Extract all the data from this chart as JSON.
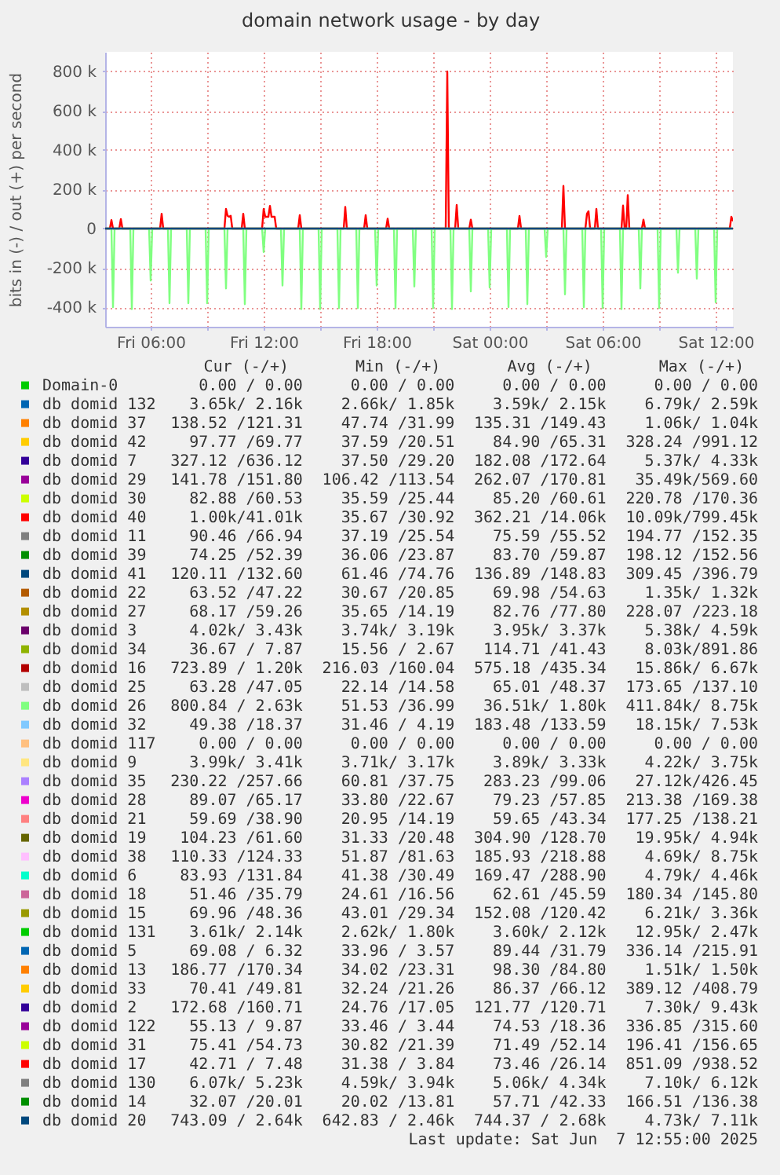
{
  "chart_data": {
    "type": "line",
    "title": "domain network usage - by day",
    "ylabel": "bits in (-) / out (+) per second",
    "xlim": [
      "2025-06-06T03:35",
      "2025-06-07T12:55"
    ],
    "xticks": [
      {
        "value": "2025-06-06T06:00",
        "label": "Fri 06:00"
      },
      {
        "value": "2025-06-06T09:00",
        "label": null
      },
      {
        "value": "2025-06-06T12:00",
        "label": "Fri 12:00"
      },
      {
        "value": "2025-06-06T15:00",
        "label": null
      },
      {
        "value": "2025-06-06T18:00",
        "label": "Fri 18:00"
      },
      {
        "value": "2025-06-06T21:00",
        "label": null
      },
      {
        "value": "2025-06-07T00:00",
        "label": "Sat 00:00"
      },
      {
        "value": "2025-06-07T03:00",
        "label": null
      },
      {
        "value": "2025-06-07T06:00",
        "label": "Sat 06:00"
      },
      {
        "value": "2025-06-07T09:00",
        "label": null
      },
      {
        "value": "2025-06-07T12:00",
        "label": "Sat 12:00"
      }
    ],
    "ylim": [
      -500000,
      900000
    ],
    "yticks": [
      {
        "value": -400000,
        "label": "-400 k"
      },
      {
        "value": -200000,
        "label": "-200 k"
      },
      0,
      {
        "value": 200000,
        "label": "200 k"
      },
      {
        "value": 400000,
        "label": "400 k"
      },
      {
        "value": 600000,
        "label": "600 k"
      },
      {
        "value": 800000,
        "label": "800 k"
      }
    ],
    "grid": true,
    "legend": "bottom",
    "series": [
      {
        "name": "Domain-0",
        "color": "#00cc00"
      },
      {
        "name": "db domid 132",
        "color": "#0066b3"
      },
      {
        "name": "db domid 37",
        "color": "#ff8000"
      },
      {
        "name": "db domid 42",
        "color": "#ffcc00"
      },
      {
        "name": "db domid 7",
        "color": "#330099"
      },
      {
        "name": "db domid 29",
        "color": "#990099"
      },
      {
        "name": "db domid 30",
        "color": "#ccff00"
      },
      {
        "name": "db domid 40",
        "color": "#ff0000",
        "x": [
          "2025-06-06T03:35",
          "2025-06-06T03:50",
          "2025-06-06T03:55",
          "2025-06-06T04:00",
          "2025-06-06T04:20",
          "2025-06-06T04:25",
          "2025-06-06T04:30",
          "2025-06-06T06:30",
          "2025-06-06T06:35",
          "2025-06-06T06:40",
          "2025-06-06T09:55",
          "2025-06-06T10:00",
          "2025-06-06T10:05",
          "2025-06-06T10:10",
          "2025-06-06T10:15",
          "2025-06-06T10:20",
          "2025-06-06T10:50",
          "2025-06-06T10:55",
          "2025-06-06T11:00",
          "2025-06-06T11:55",
          "2025-06-06T12:00",
          "2025-06-06T12:05",
          "2025-06-06T12:10",
          "2025-06-06T12:15",
          "2025-06-06T12:20",
          "2025-06-06T12:25",
          "2025-06-06T12:30",
          "2025-06-06T12:35",
          "2025-06-06T12:40",
          "2025-06-06T13:50",
          "2025-06-06T13:55",
          "2025-06-06T14:00",
          "2025-06-06T16:15",
          "2025-06-06T16:20",
          "2025-06-06T16:25",
          "2025-06-06T17:20",
          "2025-06-06T17:25",
          "2025-06-06T17:30",
          "2025-06-06T18:30",
          "2025-06-06T18:35",
          "2025-06-06T18:40",
          "2025-06-06T21:40",
          "2025-06-06T21:45",
          "2025-06-06T21:50",
          "2025-06-06T22:10",
          "2025-06-06T22:15",
          "2025-06-06T22:20",
          "2025-06-06T22:55",
          "2025-06-06T23:00",
          "2025-06-06T23:05",
          "2025-06-07T01:30",
          "2025-06-07T01:35",
          "2025-06-07T01:40",
          "2025-06-07T03:50",
          "2025-06-07T03:55",
          "2025-06-07T04:00",
          "2025-06-07T05:05",
          "2025-06-07T05:10",
          "2025-06-07T05:15",
          "2025-06-07T05:20",
          "2025-06-07T05:35",
          "2025-06-07T05:40",
          "2025-06-07T05:45",
          "2025-06-07T07:00",
          "2025-06-07T07:05",
          "2025-06-07T07:10",
          "2025-06-07T07:15",
          "2025-06-07T07:20",
          "2025-06-07T07:25",
          "2025-06-07T08:05",
          "2025-06-07T08:10",
          "2025-06-07T08:15",
          "2025-06-07T12:45",
          "2025-06-07T12:50",
          "2025-06-07T12:55"
        ],
        "values": [
          0,
          0,
          43000,
          0,
          0,
          48000,
          0,
          0,
          75000,
          0,
          0,
          100000,
          65000,
          60000,
          65000,
          0,
          0,
          75000,
          0,
          0,
          100000,
          60000,
          60000,
          60000,
          115000,
          60000,
          60000,
          60000,
          0,
          0,
          68000,
          0,
          0,
          110000,
          0,
          0,
          68000,
          0,
          0,
          50000,
          0,
          0,
          800000,
          0,
          0,
          120000,
          0,
          0,
          45000,
          0,
          0,
          64000,
          0,
          0,
          217000,
          0,
          0,
          75000,
          88000,
          0,
          0,
          100000,
          0,
          0,
          117000,
          0,
          0,
          170000,
          0,
          0,
          45000,
          0,
          0,
          60000,
          41000
        ]
      },
      {
        "name": "db domid 11",
        "color": "#808080"
      },
      {
        "name": "db domid 39",
        "color": "#008f00"
      },
      {
        "name": "db domid 41",
        "color": "#00487d"
      },
      {
        "name": "db domid 22",
        "color": "#b35a00"
      },
      {
        "name": "db domid 27",
        "color": "#b38f00"
      },
      {
        "name": "db domid 3",
        "color": "#6b006b"
      },
      {
        "name": "db domid 34",
        "color": "#8fb300"
      },
      {
        "name": "db domid 16",
        "color": "#b30000"
      },
      {
        "name": "db domid 25",
        "color": "#bebebe"
      },
      {
        "name": "db domid 26",
        "color": "#80ff80",
        "x": [
          "2025-06-06T03:35",
          "2025-06-06T03:55",
          "2025-06-06T04:00",
          "2025-06-06T04:05",
          "2025-06-06T04:55",
          "2025-06-06T05:00",
          "2025-06-06T05:05",
          "2025-06-06T05:55",
          "2025-06-06T06:00",
          "2025-06-06T06:05",
          "2025-06-06T06:55",
          "2025-06-06T07:00",
          "2025-06-06T07:05",
          "2025-06-06T07:55",
          "2025-06-06T08:00",
          "2025-06-06T08:05",
          "2025-06-06T08:55",
          "2025-06-06T09:00",
          "2025-06-06T09:05",
          "2025-06-06T09:55",
          "2025-06-06T10:00",
          "2025-06-06T10:05",
          "2025-06-06T10:55",
          "2025-06-06T11:00",
          "2025-06-06T11:05",
          "2025-06-06T11:55",
          "2025-06-06T12:00",
          "2025-06-06T12:05",
          "2025-06-06T12:55",
          "2025-06-06T13:00",
          "2025-06-06T13:05",
          "2025-06-06T13:55",
          "2025-06-06T14:00",
          "2025-06-06T14:05",
          "2025-06-06T14:55",
          "2025-06-06T15:00",
          "2025-06-06T15:05",
          "2025-06-06T15:55",
          "2025-06-06T16:00",
          "2025-06-06T16:05",
          "2025-06-06T16:55",
          "2025-06-06T17:00",
          "2025-06-06T17:05",
          "2025-06-06T17:55",
          "2025-06-06T18:00",
          "2025-06-06T18:05",
          "2025-06-06T18:55",
          "2025-06-06T19:00",
          "2025-06-06T19:05",
          "2025-06-06T19:55",
          "2025-06-06T20:00",
          "2025-06-06T20:05",
          "2025-06-06T20:55",
          "2025-06-06T21:00",
          "2025-06-06T21:05",
          "2025-06-06T21:55",
          "2025-06-06T22:00",
          "2025-06-06T22:05",
          "2025-06-06T22:55",
          "2025-06-06T23:00",
          "2025-06-06T23:05",
          "2025-06-06T23:55",
          "2025-06-07T00:00",
          "2025-06-07T00:05",
          "2025-06-07T00:55",
          "2025-06-07T01:00",
          "2025-06-07T01:05",
          "2025-06-07T01:55",
          "2025-06-07T02:00",
          "2025-06-07T02:05",
          "2025-06-07T02:55",
          "2025-06-07T03:00",
          "2025-06-07T03:05",
          "2025-06-07T03:55",
          "2025-06-07T04:00",
          "2025-06-07T04:05",
          "2025-06-07T04:55",
          "2025-06-07T05:00",
          "2025-06-07T05:05",
          "2025-06-07T05:55",
          "2025-06-07T06:00",
          "2025-06-07T06:05",
          "2025-06-07T06:55",
          "2025-06-07T07:00",
          "2025-06-07T07:05",
          "2025-06-07T07:55",
          "2025-06-07T08:00",
          "2025-06-07T08:05",
          "2025-06-07T08:55",
          "2025-06-07T09:00",
          "2025-06-07T09:05",
          "2025-06-07T09:55",
          "2025-06-07T10:00",
          "2025-06-07T10:05",
          "2025-06-07T10:55",
          "2025-06-07T11:00",
          "2025-06-07T11:05",
          "2025-06-07T11:55",
          "2025-06-07T12:00",
          "2025-06-07T12:05",
          "2025-06-07T12:55"
        ],
        "values": [
          0,
          0,
          -400000,
          0,
          0,
          -410000,
          0,
          0,
          -265000,
          0,
          0,
          -380000,
          0,
          0,
          -380000,
          0,
          0,
          -380000,
          0,
          0,
          -305000,
          0,
          0,
          -385000,
          0,
          0,
          -120000,
          0,
          0,
          -290000,
          0,
          0,
          -410000,
          0,
          0,
          -410000,
          0,
          0,
          -405000,
          0,
          0,
          -405000,
          0,
          0,
          -290000,
          0,
          0,
          -405000,
          0,
          0,
          -295000,
          0,
          0,
          -405000,
          0,
          0,
          -410000,
          0,
          0,
          -320000,
          0,
          0,
          -300000,
          0,
          0,
          -400000,
          0,
          0,
          -385000,
          0,
          0,
          -145000,
          0,
          0,
          -335000,
          0,
          0,
          -400000,
          0,
          0,
          -405000,
          0,
          0,
          -410000,
          0,
          0,
          -305000,
          0,
          0,
          -405000,
          0,
          0,
          -225000,
          0,
          0,
          -255000,
          0,
          0,
          -375000,
          0,
          0
        ]
      },
      {
        "name": "db domid 32",
        "color": "#80c9ff"
      },
      {
        "name": "db domid 117",
        "color": "#ffc080"
      },
      {
        "name": "db domid 9",
        "color": "#ffe680"
      },
      {
        "name": "db domid 35",
        "color": "#aa80ff"
      },
      {
        "name": "db domid 28",
        "color": "#ee00cc"
      },
      {
        "name": "db domid 21",
        "color": "#ff8080"
      },
      {
        "name": "db domid 19",
        "color": "#666600"
      },
      {
        "name": "db domid 38",
        "color": "#ffbfff"
      },
      {
        "name": "db domid 6",
        "color": "#00ffcc"
      },
      {
        "name": "db domid 18",
        "color": "#cc6699"
      },
      {
        "name": "db domid 15",
        "color": "#999900"
      },
      {
        "name": "db domid 131",
        "color": "#00cc00"
      },
      {
        "name": "db domid 5",
        "color": "#0066b3"
      },
      {
        "name": "db domid 13",
        "color": "#ff8000"
      },
      {
        "name": "db domid 33",
        "color": "#ffcc00"
      },
      {
        "name": "db domid 2",
        "color": "#330099"
      },
      {
        "name": "db domid 122",
        "color": "#990099"
      },
      {
        "name": "db domid 31",
        "color": "#ccff00"
      },
      {
        "name": "db domid 17",
        "color": "#ff0000"
      },
      {
        "name": "db domid 130",
        "color": "#808080"
      },
      {
        "name": "db domid 14",
        "color": "#008f00"
      },
      {
        "name": "db domid 20",
        "color": "#00487d",
        "x": [
          "2025-06-06T03:35",
          "2025-06-07T12:55"
        ],
        "values": [
          0,
          0
        ]
      }
    ],
    "annotations": [
      "Cur (-/+)",
      "Min (-/+)",
      "Avg (-/+)",
      "Max (-/+)",
      "0.00 / 0.00",
      "0.00 / 0.00",
      "0.00 / 0.00",
      "0.00 / 0.00",
      "3.65k/ 2.16k",
      "2.66k/ 1.85k",
      "3.59k/ 2.15k",
      "6.79k/ 2.59k",
      "138.52 /121.31",
      "47.74 /31.99",
      "135.31 /149.43",
      "1.06k/ 1.04k",
      "97.77 /69.77",
      "37.59 /20.51",
      "84.90 /65.31",
      "328.24 /991.12",
      "327.12 /636.12",
      "37.50 /29.20",
      "182.08 /172.64",
      "5.37k/ 4.33k",
      "141.78 /151.80",
      "106.42 /113.54",
      "262.07 /170.81",
      "35.49k/569.60",
      "82.88 /60.53",
      "35.59 /25.44",
      "85.20 /60.61",
      "220.78 /170.36",
      "1.00k/41.01k",
      "35.67 /30.92",
      "362.21 /14.06k",
      "10.09k/799.45k",
      "90.46 /66.94",
      "37.19 /25.54",
      "75.59 /55.52",
      "194.77 /152.35",
      "74.25 /52.39",
      "36.06 /23.87",
      "83.70 /59.87",
      "198.12 /152.56",
      "120.11 /132.60",
      "61.46 /74.76",
      "136.89 /148.83",
      "309.45 /396.79",
      "63.52 /47.22",
      "30.67 /20.85",
      "69.98 /54.63",
      "1.35k/ 1.32k",
      "68.17 /59.26",
      "35.65 /14.19",
      "82.76 /77.80",
      "228.07 /223.18",
      "4.02k/ 3.43k",
      "3.74k/ 3.19k",
      "3.95k/ 3.37k",
      "5.38k/ 4.59k",
      "36.67 / 7.87",
      "15.56 / 2.67",
      "114.71 /41.43",
      "8.03k/891.86",
      "723.89 / 1.20k",
      "216.03 /160.04",
      "575.18 /435.34",
      "15.86k/ 6.67k",
      "63.28 /47.05",
      "22.14 /14.58",
      "65.01 /48.37",
      "173.65 /137.10",
      "800.84 / 2.63k",
      "51.53 /36.99",
      "36.51k/ 1.80k",
      "411.84k/ 8.75k",
      "49.38 /18.37",
      "31.46 / 4.19",
      "183.48 /133.59",
      "18.15k/ 7.53k",
      "0.00 / 0.00",
      "0.00 / 0.00",
      "0.00 / 0.00",
      "0.00 / 0.00",
      "3.99k/ 3.41k",
      "3.71k/ 3.17k",
      "3.89k/ 3.33k",
      "4.22k/ 3.75k",
      "230.22 /257.66",
      "60.81 /37.75",
      "283.23 /99.06",
      "27.12k/426.45",
      "89.07 /65.17",
      "33.80 /22.67",
      "79.23 /57.85",
      "213.38 /169.38",
      "59.69 /38.90",
      "20.95 /14.19",
      "59.65 /43.34",
      "177.25 /138.21",
      "104.23 /61.60",
      "31.33 /20.48",
      "304.90 /128.70",
      "19.95k/ 4.94k",
      "110.33 /124.33",
      "51.87 /81.63",
      "185.93 /218.88",
      "4.69k/ 8.75k",
      "83.93 /131.84",
      "41.38 /30.49",
      "169.47 /288.90",
      "4.79k/ 4.46k",
      "51.46 /35.79",
      "24.61 /16.56",
      "62.61 /45.59",
      "180.34 /145.80",
      "69.96 /48.36",
      "43.01 /29.34",
      "152.08 /120.42",
      "6.21k/ 3.36k",
      "3.61k/ 2.14k",
      "2.62k/ 1.80k",
      "3.60k/ 2.12k",
      "12.95k/ 2.47k",
      "69.08 / 6.32",
      "33.96 / 3.57",
      "89.44 /31.79",
      "336.14 /215.91",
      "186.77 /170.34",
      "34.02 /23.31",
      "98.30 /84.80",
      "1.51k/ 1.50k",
      "70.41 /49.81",
      "32.24 /21.26",
      "86.37 /66.12",
      "389.12 /408.79",
      "172.68 /160.71",
      "24.76 /17.05",
      "121.77 /120.71",
      "7.30k/ 9.43k",
      "55.13 / 9.87",
      "33.46 / 3.44",
      "74.53 /18.36",
      "336.85 /315.60",
      "75.41 /54.73",
      "30.82 /21.39",
      "71.49 /52.14",
      "196.41 /156.65",
      "42.71 / 7.48",
      "31.38 / 3.84",
      "73.46 /26.14",
      "851.09 /938.52",
      "6.07k/ 5.23k",
      "4.59k/ 3.94k",
      "5.06k/ 4.34k",
      "7.10k/ 6.12k",
      "32.07 /20.01",
      "20.02 /13.81",
      "57.71 /42.33",
      "166.51 /136.38",
      "743.09 / 2.64k",
      "642.83 / 2.46k",
      "744.37 / 2.68k",
      "4.73k/ 7.11k",
      "Last update: Sat Jun  7 12:55:00 2025"
    ]
  }
}
